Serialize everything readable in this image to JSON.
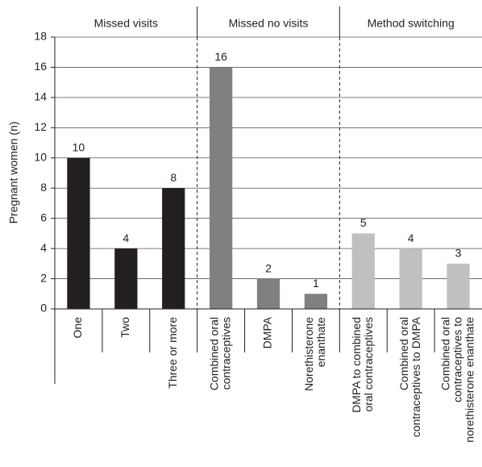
{
  "chart_data": {
    "type": "bar",
    "y_label": "Pregnant women (n)",
    "ylim": [
      0,
      18
    ],
    "yticks": [
      0,
      2,
      4,
      6,
      8,
      10,
      12,
      14,
      16,
      18
    ],
    "grid": true,
    "groups": [
      {
        "name": "Missed visits",
        "color": "#231f20",
        "categories": [
          [
            "One"
          ],
          [
            "Two"
          ],
          [
            "Three or more"
          ]
        ],
        "values": [
          10,
          4,
          8
        ]
      },
      {
        "name": "Missed no visits",
        "color": "#808080",
        "categories": [
          [
            "Combined oral",
            "contraceptives"
          ],
          [
            "DMPA"
          ],
          [
            "Norethisterone",
            "enanthate"
          ]
        ],
        "values": [
          16,
          2,
          1
        ]
      },
      {
        "name": "Method switching",
        "color": "#c0c0c0",
        "categories": [
          [
            "DMPA to combined",
            "oral contraceptives"
          ],
          [
            "Combined oral",
            "contraceptives to DMPA"
          ],
          [
            "Combined oral",
            "contraceptives to",
            "norethisterone enanthate"
          ]
        ],
        "values": [
          5,
          4,
          3
        ]
      }
    ]
  }
}
